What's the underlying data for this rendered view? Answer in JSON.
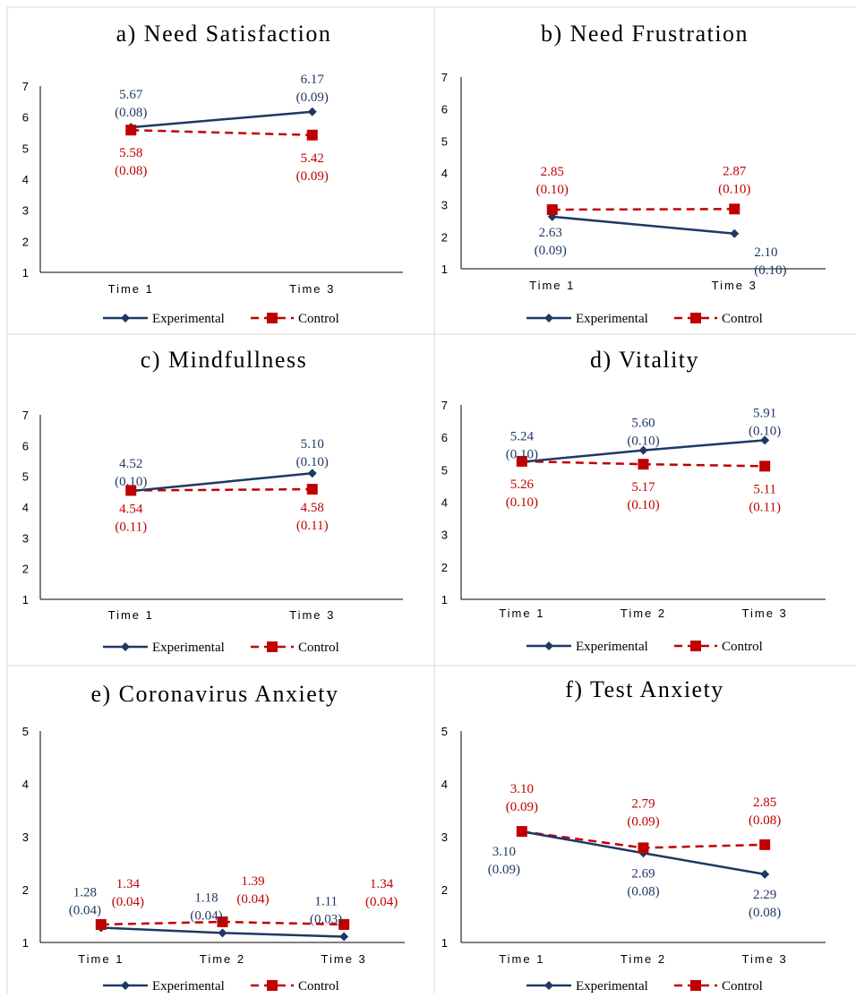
{
  "colors": {
    "experimental": "#1f3864",
    "control": "#c00000"
  },
  "legend": {
    "experimental": "Experimental",
    "control": "Control"
  },
  "chart_data": [
    {
      "type": "line",
      "title": "a) Need Satisfaction",
      "categories": [
        "Time 1",
        "Time 3"
      ],
      "ylim": [
        1,
        7
      ],
      "yticks": [
        "1",
        "2",
        "3",
        "4",
        "5",
        "6",
        "7"
      ],
      "legend_position": "bottom",
      "series": [
        {
          "name": "Experimental",
          "values": [
            5.67,
            6.17
          ],
          "labels": [
            "5.67",
            "6.17"
          ],
          "se": [
            "(0.08)",
            "(0.09)"
          ]
        },
        {
          "name": "Control",
          "values": [
            5.58,
            5.42
          ],
          "labels": [
            "5.58",
            "5.42"
          ],
          "se": [
            "(0.08)",
            "(0.09)"
          ]
        }
      ]
    },
    {
      "type": "line",
      "title": "b) Need Frustration",
      "categories": [
        "Time 1",
        "Time 3"
      ],
      "ylim": [
        1,
        7
      ],
      "yticks": [
        "1",
        "2",
        "3",
        "4",
        "5",
        "6",
        "7"
      ],
      "legend_position": "bottom",
      "series": [
        {
          "name": "Experimental",
          "values": [
            2.63,
            2.1
          ],
          "labels": [
            "2.63",
            "2.10"
          ],
          "se": [
            "(0.09)",
            "(0.10)"
          ]
        },
        {
          "name": "Control",
          "values": [
            2.85,
            2.87
          ],
          "labels": [
            "2.85",
            "2.87"
          ],
          "se": [
            "(0.10)",
            "(0.10)"
          ]
        }
      ]
    },
    {
      "type": "line",
      "title": "c) Mindfullness",
      "categories": [
        "Time 1",
        "Time 3"
      ],
      "ylim": [
        1,
        7
      ],
      "yticks": [
        "1",
        "2",
        "3",
        "4",
        "5",
        "6",
        "7"
      ],
      "legend_position": "bottom",
      "series": [
        {
          "name": "Experimental",
          "values": [
            4.52,
            5.1
          ],
          "labels": [
            "4.52",
            "5.10"
          ],
          "se": [
            "(0.10)",
            "(0.10)"
          ]
        },
        {
          "name": "Control",
          "values": [
            4.54,
            4.58
          ],
          "labels": [
            "4.54",
            "4.58"
          ],
          "se": [
            "(0.11)",
            "(0.11)"
          ]
        }
      ]
    },
    {
      "type": "line",
      "title": "d) Vitality",
      "categories": [
        "Time 1",
        "Time 2",
        "Time 3"
      ],
      "ylim": [
        1,
        7
      ],
      "yticks": [
        "1",
        "2",
        "3",
        "4",
        "5",
        "6",
        "7"
      ],
      "legend_position": "bottom",
      "series": [
        {
          "name": "Experimental",
          "values": [
            5.24,
            5.6,
            5.91
          ],
          "labels": [
            "5.24",
            "5.60",
            "5.91"
          ],
          "se": [
            "(0.10)",
            "(0.10)",
            "(0.10)"
          ]
        },
        {
          "name": "Control",
          "values": [
            5.26,
            5.17,
            5.11
          ],
          "labels": [
            "5.26",
            "5.17",
            "5.11"
          ],
          "se": [
            "(0.10)",
            "(0.10)",
            "(0.11)"
          ]
        }
      ]
    },
    {
      "type": "line",
      "title": "e) Coronavirus Anxiety",
      "categories": [
        "Time 1",
        "Time 2",
        "Time 3"
      ],
      "ylim": [
        1,
        5
      ],
      "yticks": [
        "1",
        "2",
        "3",
        "4",
        "5"
      ],
      "legend_position": "bottom",
      "series": [
        {
          "name": "Experimental",
          "values": [
            1.28,
            1.18,
            1.11
          ],
          "labels": [
            "1.28",
            "1.18",
            "1.11"
          ],
          "se": [
            "(0.04)",
            "(0.04)",
            "(0.03)"
          ]
        },
        {
          "name": "Control",
          "values": [
            1.34,
            1.39,
            1.34
          ],
          "labels": [
            "1.34",
            "1.39",
            "1.34"
          ],
          "se": [
            "(0.04)",
            "(0.04)",
            "(0.04)"
          ]
        }
      ]
    },
    {
      "type": "line",
      "title": "f) Test Anxiety",
      "categories": [
        "Time 1",
        "Time 2",
        "Time 3"
      ],
      "ylim": [
        1,
        5
      ],
      "yticks": [
        "1",
        "2",
        "3",
        "4",
        "5"
      ],
      "legend_position": "bottom",
      "series": [
        {
          "name": "Experimental",
          "values": [
            3.1,
            2.69,
            2.29
          ],
          "labels": [
            "3.10",
            "2.69",
            "2.29"
          ],
          "se": [
            "(0.09)",
            "(0.08)",
            "(0.08)"
          ]
        },
        {
          "name": "Control",
          "values": [
            3.1,
            2.79,
            2.85
          ],
          "labels": [
            "3.10",
            "2.79",
            "2.85"
          ],
          "se": [
            "(0.09)",
            "(0.09)",
            "(0.08)"
          ]
        }
      ]
    }
  ]
}
